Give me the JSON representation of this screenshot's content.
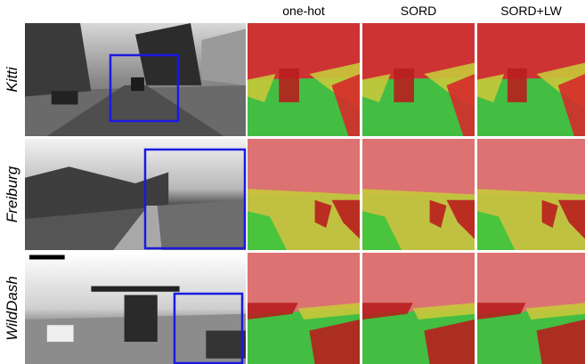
{
  "columns": [
    "one-hot",
    "SORD",
    "SORD+LW"
  ],
  "rows": [
    {
      "label": "Kitti"
    },
    {
      "label": "Freiburg"
    },
    {
      "label": "WildDash"
    }
  ]
}
